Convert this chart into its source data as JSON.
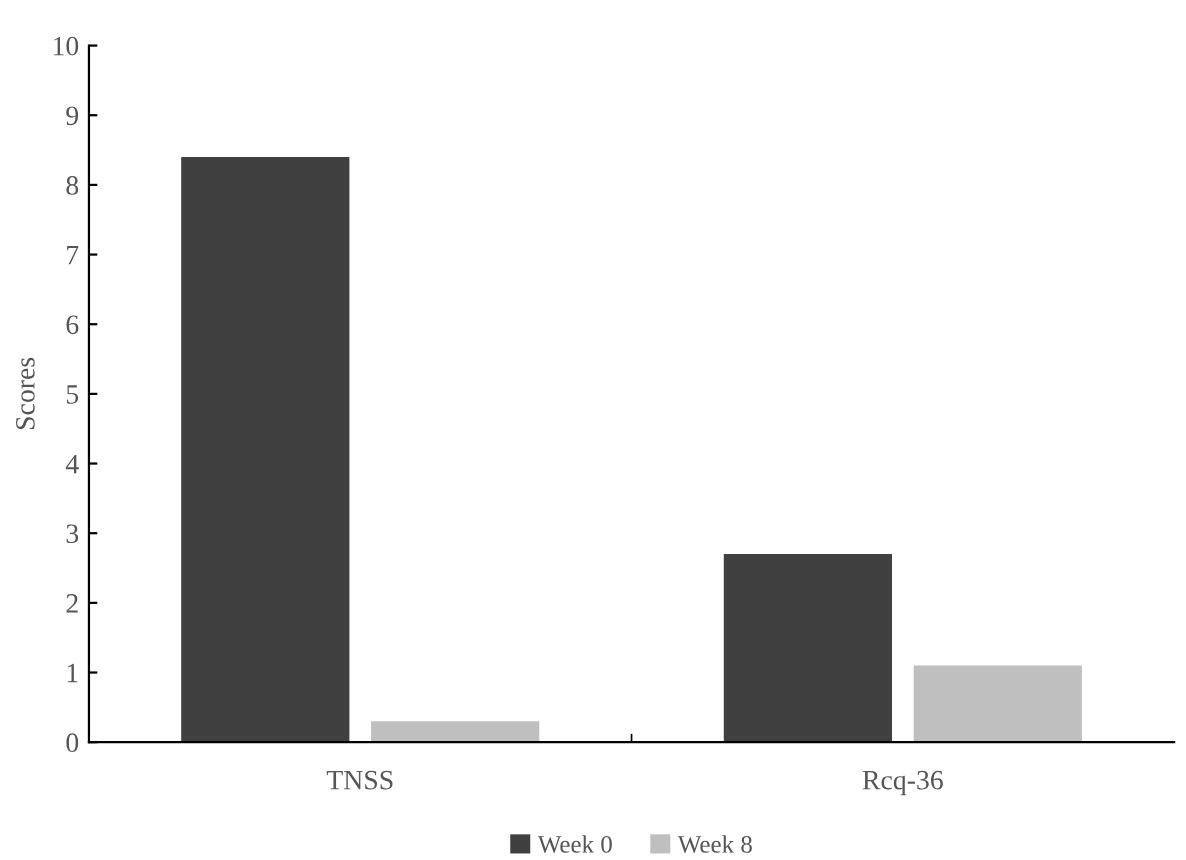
{
  "chart_data": {
    "type": "bar",
    "ylabel": "Scores",
    "categories": [
      "TNSS",
      "Rcq-36"
    ],
    "series": [
      {
        "name": "Week 0",
        "color": "#404040",
        "values": [
          8.4,
          2.7
        ]
      },
      {
        "name": "Week 8",
        "color": "#bfbfbf",
        "values": [
          0.3,
          1.1
        ]
      }
    ],
    "ylim": [
      0,
      10
    ],
    "yticks": [
      0,
      1,
      2,
      3,
      4,
      5,
      6,
      7,
      8,
      9,
      10
    ],
    "grid": false,
    "legend": "bottom"
  }
}
